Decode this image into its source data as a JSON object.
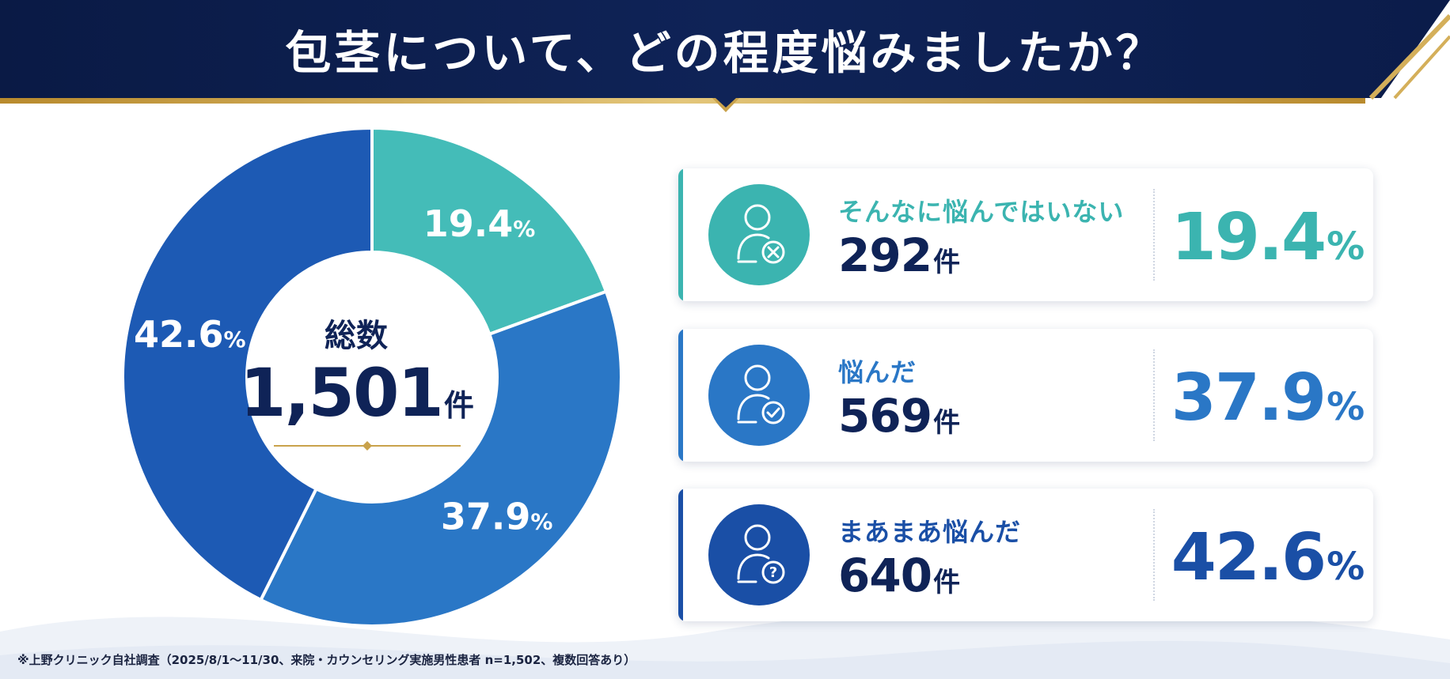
{
  "title": "包茎について、どの程度悩みましたか？",
  "center": {
    "caption": "総数",
    "total": "1,501",
    "unit": "件"
  },
  "chart_data": {
    "type": "pie",
    "donut": true,
    "total": 1501,
    "series": [
      {
        "name": "そんなに悩んではいない",
        "count": 292,
        "value": 19.4,
        "color": "#44bcb8",
        "label_color": "#ffffff"
      },
      {
        "name": "悩んだ",
        "count": 569,
        "value": 37.9,
        "color": "#2a77c6",
        "label_color": "#ffffff"
      },
      {
        "name": "まあまあ悩んだ",
        "count": 640,
        "value": 42.6,
        "color": "#1d5ab4",
        "label_color": "#ffffff"
      }
    ],
    "percent_suffix": "%"
  },
  "cards": [
    {
      "label": "そんなに悩んではいない",
      "count": "292",
      "unit": "件",
      "percent": "19.4",
      "symbol": "%",
      "color": "#3bb4b0",
      "icon": "user-x-icon"
    },
    {
      "label": "悩んだ",
      "count": "569",
      "unit": "件",
      "percent": "37.9",
      "symbol": "%",
      "color": "#2a77c6",
      "icon": "user-check-icon"
    },
    {
      "label": "まあまあ悩んだ",
      "count": "640",
      "unit": "件",
      "percent": "42.6",
      "symbol": "%",
      "color": "#1a4fa6",
      "icon": "user-question-icon"
    }
  ],
  "footnote": "※上野クリニック自社調査（2025/8/1〜11/30、来院・カウンセリング実施男性患者 n=1,502、複数回答あり）"
}
